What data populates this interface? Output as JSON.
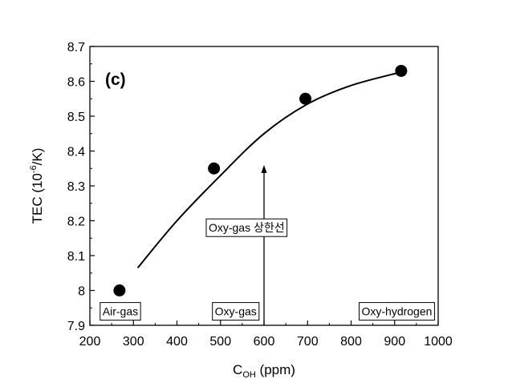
{
  "chart_data": {
    "type": "scatter",
    "panel_label": "(c)",
    "xlabel": {
      "main": "C",
      "sub": "OH",
      "rest": " (ppm)"
    },
    "ylabel": {
      "main": "TEC (10",
      "sup": "-6",
      "rest": "/K)"
    },
    "xlim": [
      200,
      1000
    ],
    "ylim": [
      7.9,
      8.7
    ],
    "x_ticks": [
      "200",
      "300",
      "400",
      "500",
      "600",
      "700",
      "800",
      "900",
      "1000"
    ],
    "y_ticks": [
      "7.9",
      "8",
      "8.1",
      "8.2",
      "8.3",
      "8.4",
      "8.5",
      "8.6",
      "8.7"
    ],
    "points": [
      {
        "x": 268,
        "y": 8.0
      },
      {
        "x": 485,
        "y": 8.35
      },
      {
        "x": 695,
        "y": 8.55
      },
      {
        "x": 915,
        "y": 8.63
      }
    ],
    "fit_curve": [
      {
        "x": 310,
        "y": 8.065
      },
      {
        "x": 400,
        "y": 8.2
      },
      {
        "x": 500,
        "y": 8.33
      },
      {
        "x": 600,
        "y": 8.45
      },
      {
        "x": 700,
        "y": 8.535
      },
      {
        "x": 800,
        "y": 8.588
      },
      {
        "x": 910,
        "y": 8.625
      }
    ],
    "arrow": {
      "x": 600,
      "y_from": 7.9,
      "y_to": 8.36
    },
    "annotations": [
      {
        "text": "Air-gas",
        "x": 270,
        "y": 7.94
      },
      {
        "text": "Oxy-gas",
        "x": 535,
        "y": 7.94
      },
      {
        "text": "Oxy-hydrogen",
        "x": 905,
        "y": 7.94
      },
      {
        "text": "Oxy-gas 상한선",
        "x": 560,
        "y": 8.18
      }
    ],
    "grid": false,
    "legend": "none"
  }
}
